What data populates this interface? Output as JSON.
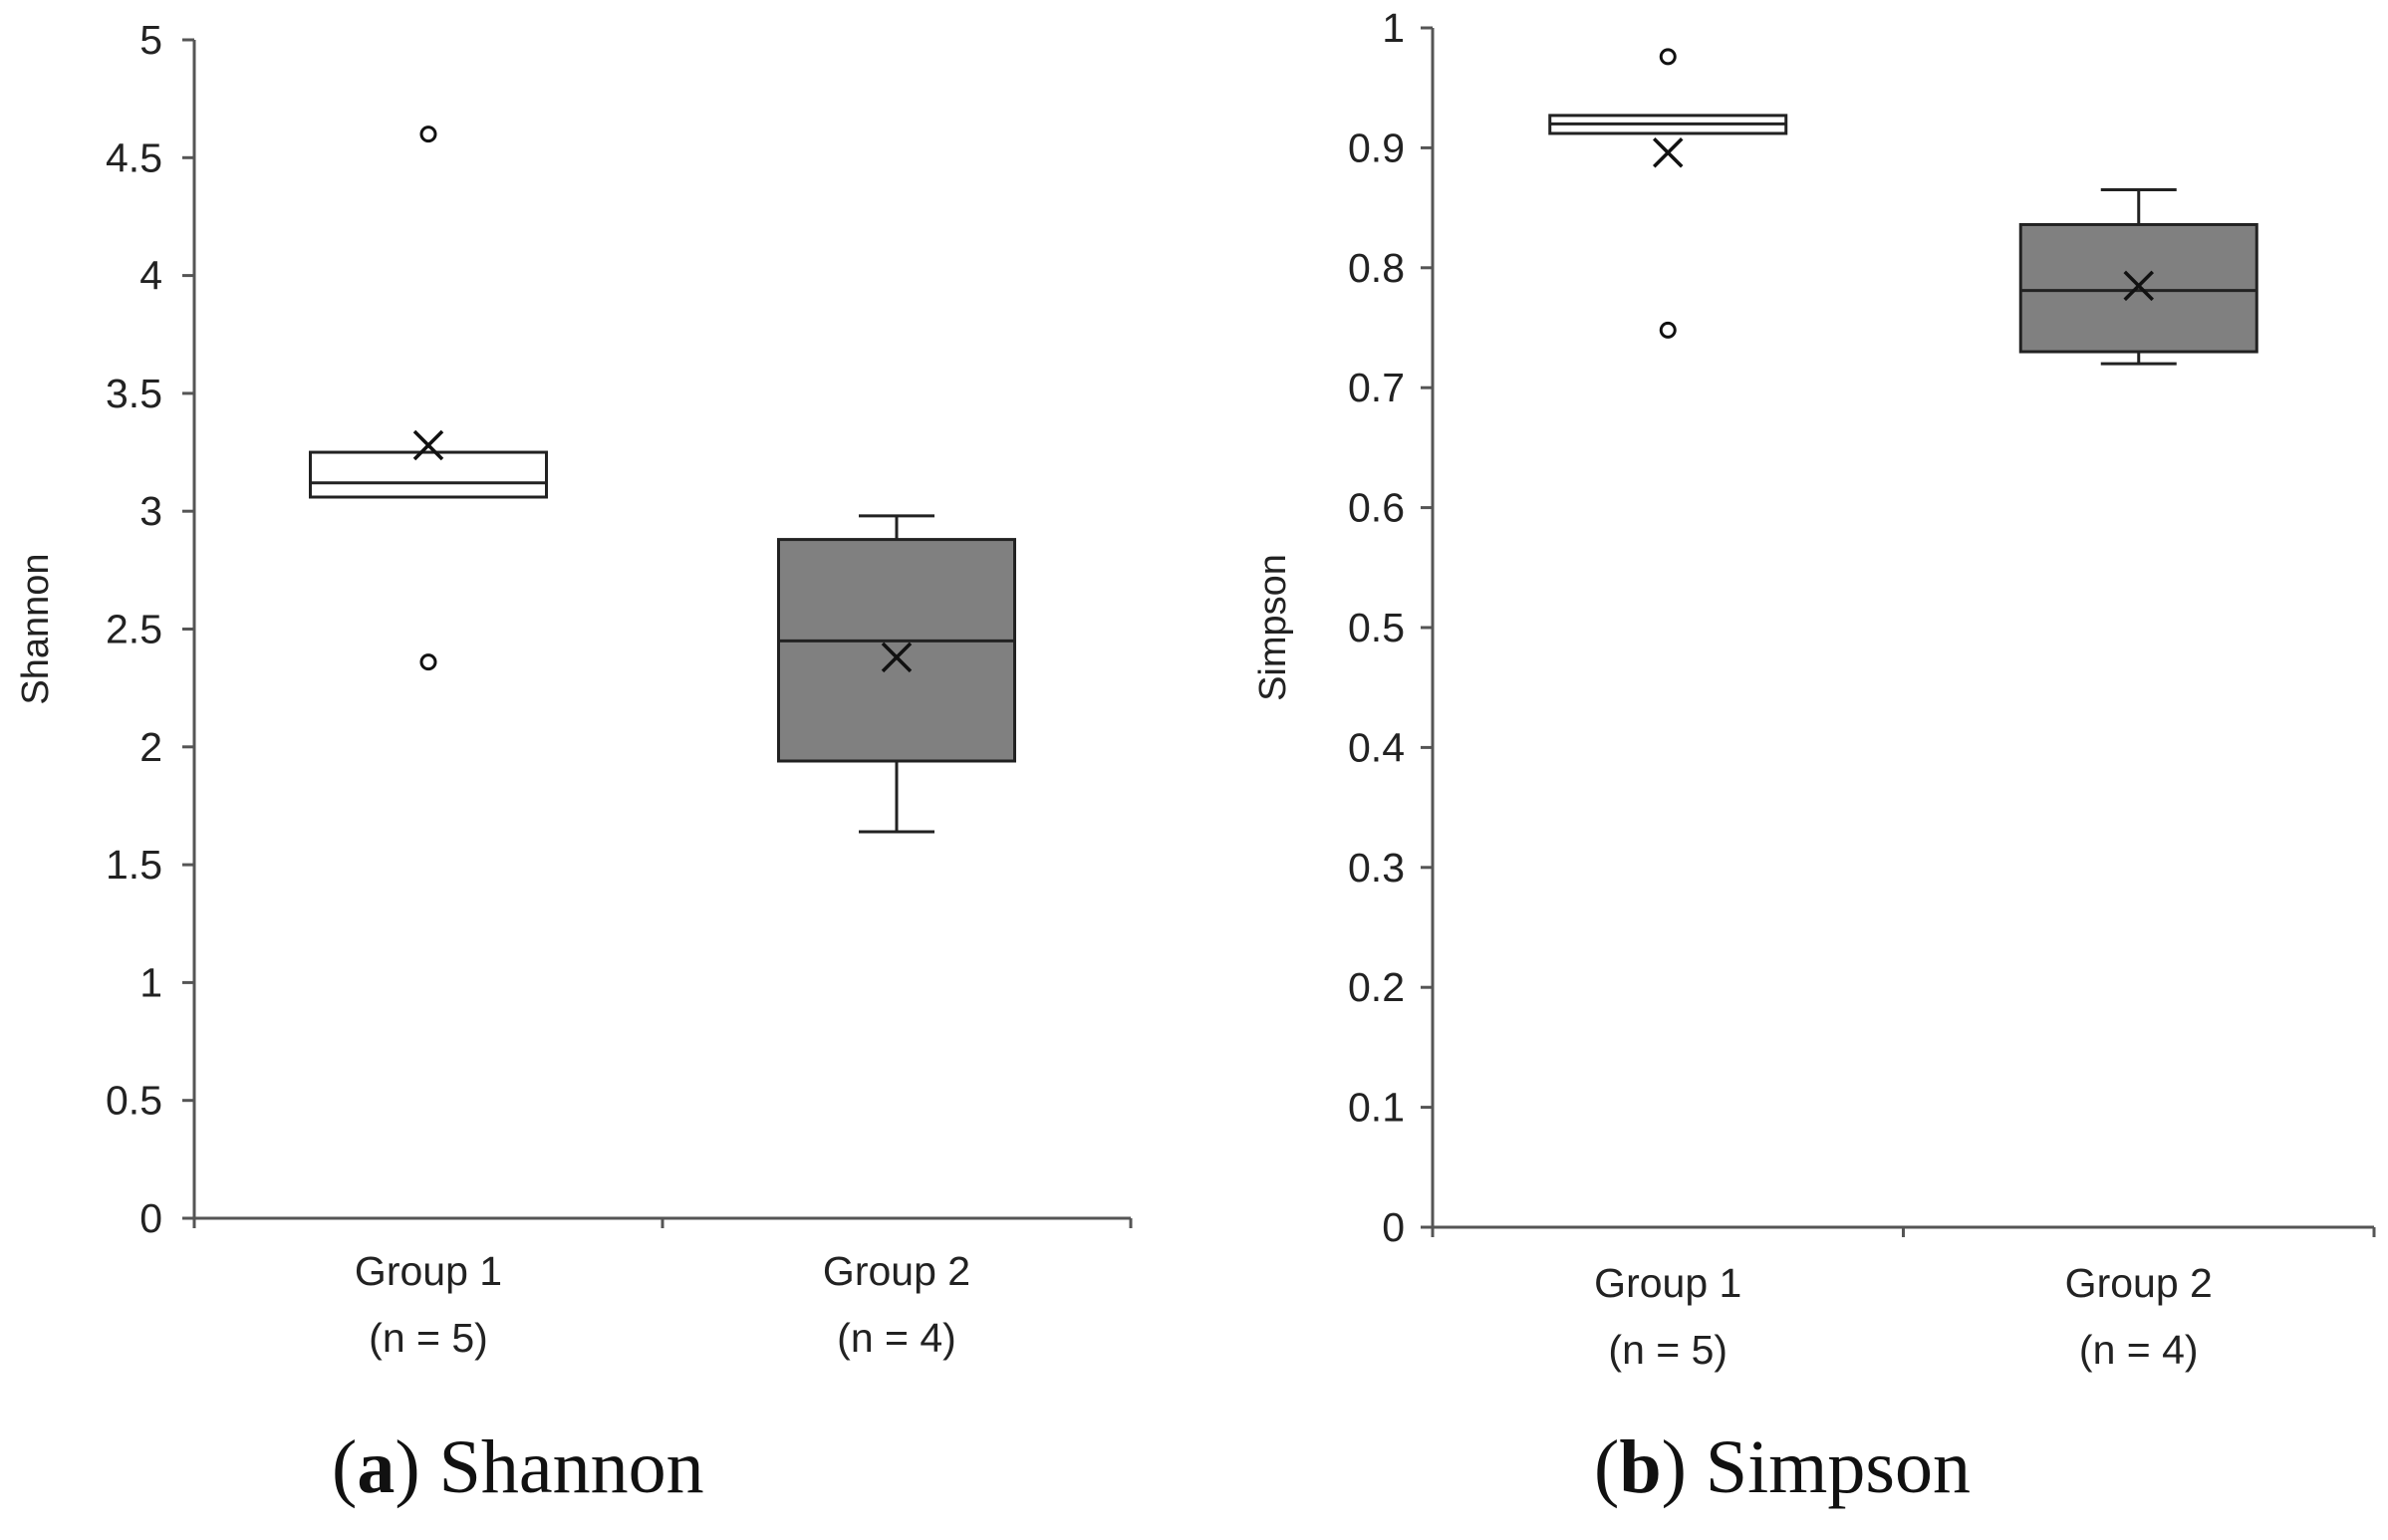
{
  "chart_data": [
    {
      "type": "box",
      "panel_label": "a",
      "caption": "Shannon",
      "ylabel": "Shannon",
      "ylim": [
        0,
        5
      ],
      "y_ticks": [
        "0",
        "0.5",
        "1",
        "1.5",
        "2",
        "2.5",
        "3",
        "3.5",
        "4",
        "4.5",
        "5"
      ],
      "categories": [
        {
          "name": "Group 1",
          "n_label": "(n = 5)"
        },
        {
          "name": "Group 2",
          "n_label": "(n = 4)"
        }
      ],
      "boxes": [
        {
          "whisker_low": 3.06,
          "q1": 3.06,
          "median": 3.12,
          "q3": 3.25,
          "whisker_high": 3.25,
          "mean": 3.28,
          "outliers": [
            4.6,
            2.36
          ],
          "fill": "#ffffff"
        },
        {
          "whisker_low": 1.64,
          "q1": 1.94,
          "median": 2.45,
          "q3": 2.88,
          "whisker_high": 2.98,
          "mean": 2.38,
          "outliers": [],
          "fill": "#808080"
        }
      ]
    },
    {
      "type": "box",
      "panel_label": "b",
      "caption": "Simpson",
      "ylabel": "Simpson",
      "ylim": [
        0,
        1
      ],
      "y_ticks": [
        "0",
        "0.1",
        "0.2",
        "0.3",
        "0.4",
        "0.5",
        "0.6",
        "0.7",
        "0.8",
        "0.9",
        "1"
      ],
      "categories": [
        {
          "name": "Group 1",
          "n_label": "(n = 5)"
        },
        {
          "name": "Group 2",
          "n_label": "(n = 4)"
        }
      ],
      "boxes": [
        {
          "whisker_low": 0.912,
          "q1": 0.912,
          "median": 0.92,
          "q3": 0.927,
          "whisker_high": 0.927,
          "mean": 0.896,
          "outliers": [
            0.976,
            0.748
          ],
          "fill": "#ffffff"
        },
        {
          "whisker_low": 0.72,
          "q1": 0.73,
          "median": 0.781,
          "q3": 0.836,
          "whisker_high": 0.865,
          "mean": 0.785,
          "outliers": [],
          "fill": "#808080"
        }
      ]
    }
  ]
}
